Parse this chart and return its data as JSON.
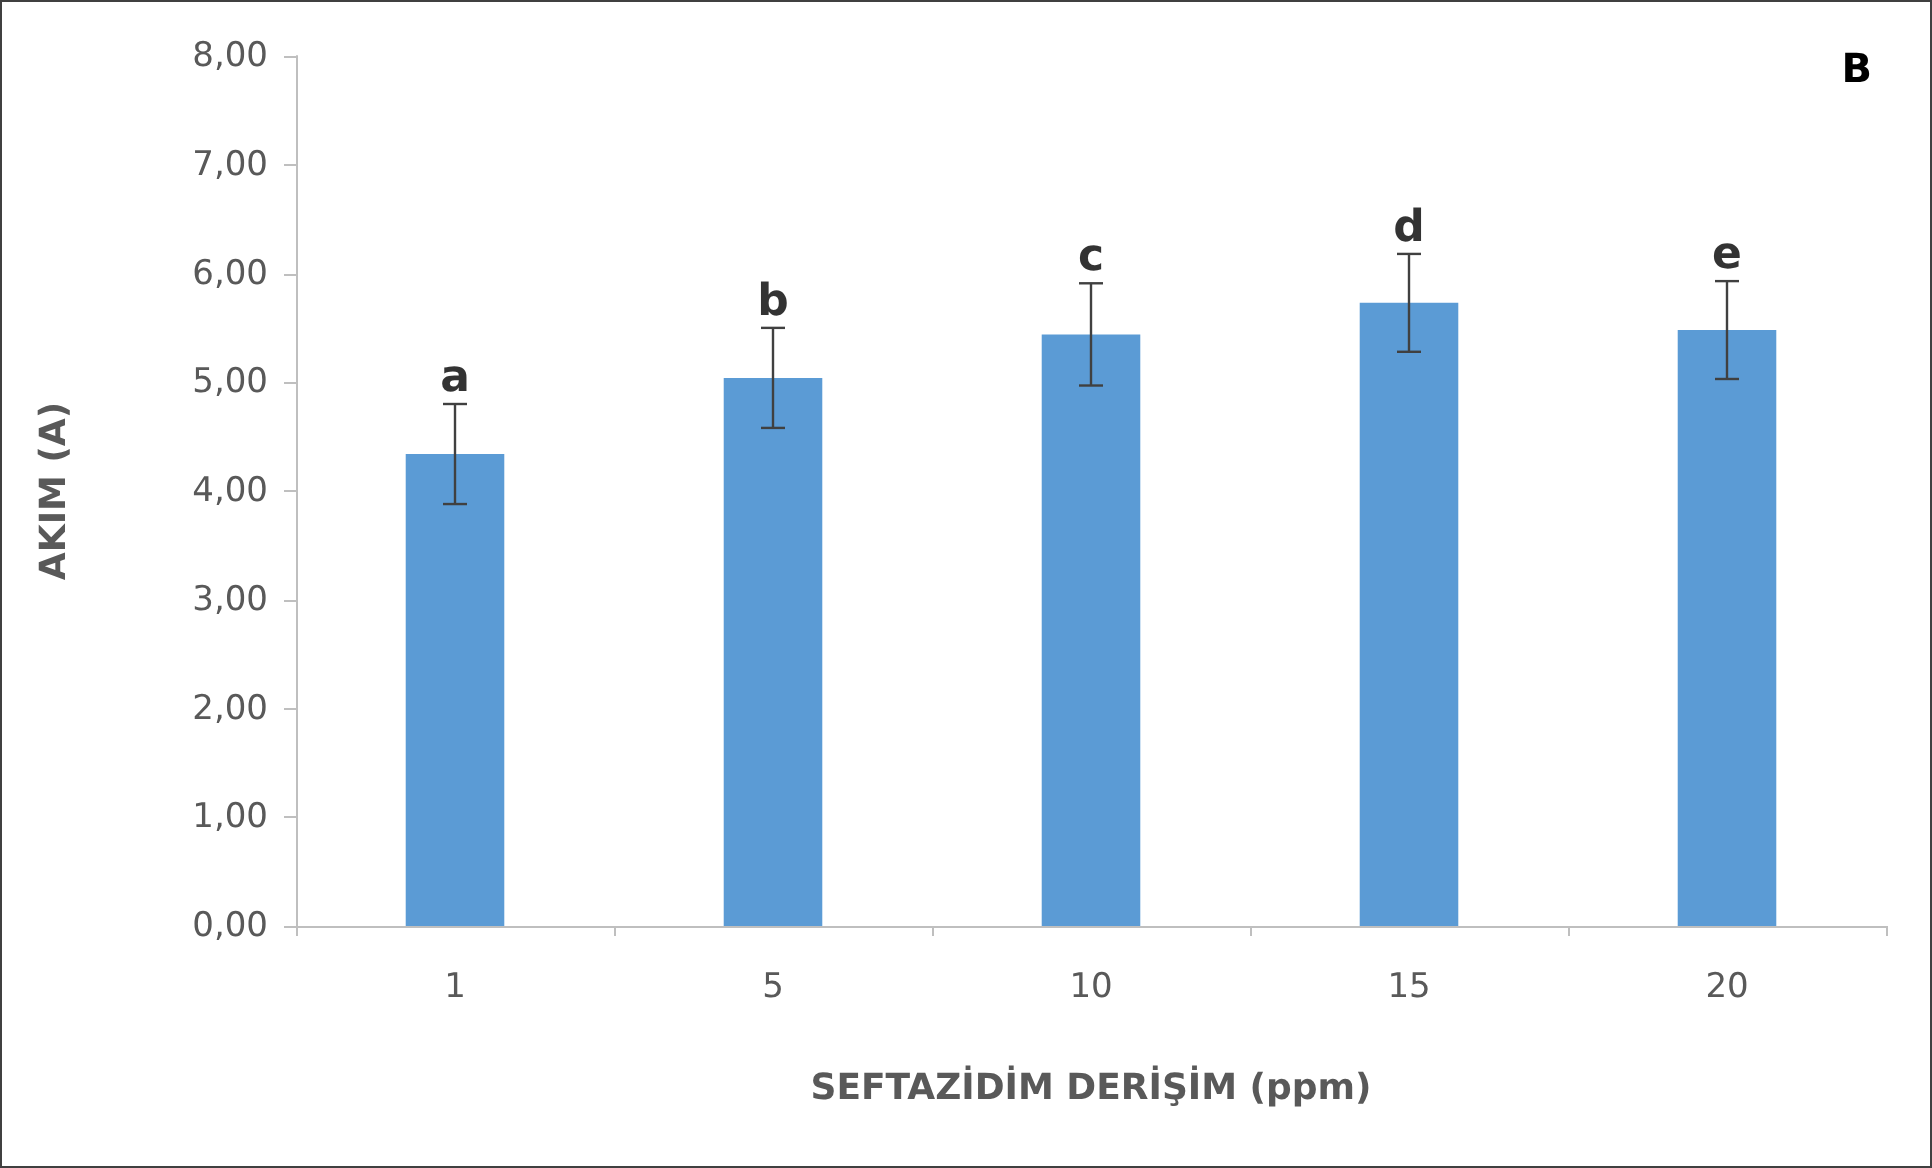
{
  "chart_data": {
    "type": "bar",
    "xlabel": "SEFTAZİDİM DERİŞİM (ppm)",
    "ylabel": "AKIM (A)",
    "categories": [
      "1",
      "5",
      "10",
      "15",
      "20"
    ],
    "series": [
      {
        "color": "#5b9bd5",
        "values": [
          4.34,
          5.04,
          5.44,
          5.73,
          5.48
        ],
        "errors": [
          0.46,
          0.46,
          0.47,
          0.45,
          0.45
        ]
      }
    ],
    "ylim": [
      0,
      8
    ],
    "yticks": [
      {
        "value": 0,
        "label": "0,00"
      },
      {
        "value": 1,
        "label": "1,00"
      },
      {
        "value": 2,
        "label": "2,00"
      },
      {
        "value": 3,
        "label": "3,00"
      },
      {
        "value": 4,
        "label": "4,00"
      },
      {
        "value": 5,
        "label": "5,00"
      },
      {
        "value": 6,
        "label": "6,00"
      },
      {
        "value": 7,
        "label": "7,00"
      },
      {
        "value": 8,
        "label": "8,00"
      }
    ],
    "grid": false,
    "annotations": [
      "B",
      {
        "text": "a",
        "x": "1",
        "y": 4.8
      },
      {
        "text": "b",
        "x": "5",
        "y": 5.5
      },
      {
        "text": "c",
        "x": "10",
        "y": 5.91
      },
      {
        "text": "d",
        "x": "15",
        "y": 6.18
      },
      {
        "text": "e",
        "x": "20",
        "y": 5.93
      }
    ]
  }
}
